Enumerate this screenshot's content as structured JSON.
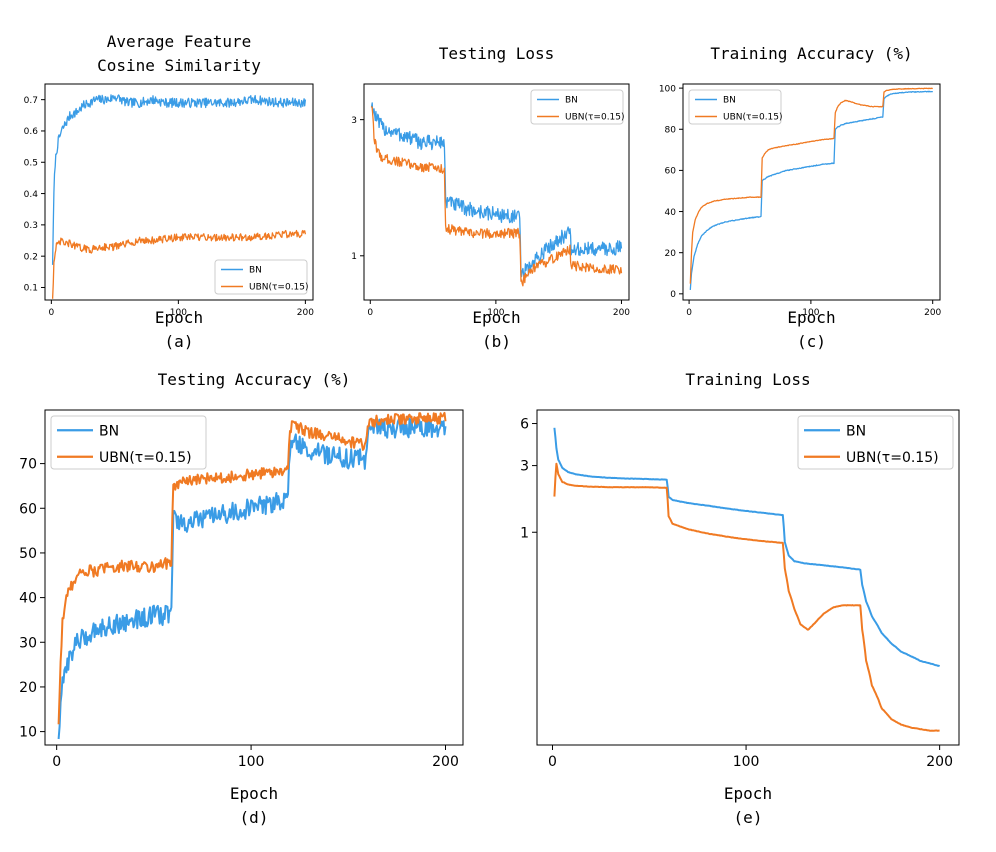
{
  "colors": {
    "bn": "#3a9ce6",
    "ubn": "#f07a23",
    "axis": "#000000",
    "background": "#ffffff"
  },
  "chart_data": [
    {
      "id": "a",
      "type": "line",
      "title": [
        "Average Feature",
        "Cosine Similarity"
      ],
      "xlabel": "Epoch",
      "caption": "(a)",
      "xlim": [
        -5,
        206
      ],
      "ylim": [
        0.06,
        0.75
      ],
      "xticks": [
        0,
        100,
        200
      ],
      "yticks": [
        0.1,
        0.2,
        0.3,
        0.4,
        0.5,
        0.6,
        0.7
      ],
      "legend": "bottom-right",
      "series": [
        {
          "name": "BN",
          "color_key": "bn",
          "x": [
            1,
            2,
            3,
            5,
            8,
            12,
            15,
            20,
            25,
            30,
            35,
            40,
            45,
            50,
            55,
            60,
            70,
            80,
            90,
            100,
            120,
            140,
            160,
            180,
            200
          ],
          "y": [
            0.18,
            0.4,
            0.5,
            0.56,
            0.6,
            0.63,
            0.65,
            0.66,
            0.68,
            0.69,
            0.7,
            0.7,
            0.7,
            0.71,
            0.7,
            0.69,
            0.69,
            0.7,
            0.69,
            0.69,
            0.69,
            0.69,
            0.7,
            0.69,
            0.69
          ],
          "noise": 0.015
        },
        {
          "name": "UBN(τ=0.15)",
          "color_key": "ubn",
          "x": [
            1,
            2,
            4,
            6,
            8,
            10,
            15,
            20,
            30,
            40,
            50,
            60,
            70,
            80,
            100,
            120,
            140,
            160,
            180,
            200
          ],
          "y": [
            0.07,
            0.18,
            0.23,
            0.24,
            0.25,
            0.24,
            0.24,
            0.23,
            0.22,
            0.23,
            0.23,
            0.24,
            0.25,
            0.25,
            0.26,
            0.26,
            0.26,
            0.26,
            0.27,
            0.27
          ],
          "noise": 0.012
        }
      ]
    },
    {
      "id": "b",
      "type": "line",
      "title": [
        "Testing Loss"
      ],
      "xlabel": "Epoch",
      "caption": "(b)",
      "xlim": [
        -5,
        206
      ],
      "ylim": [
        0.7,
        4.0
      ],
      "yscale": "log",
      "xticks": [
        0,
        100,
        200
      ],
      "yticks": [
        1,
        3
      ],
      "legend": "top-right",
      "series": [
        {
          "name": "BN",
          "color_key": "bn",
          "x": [
            1,
            5,
            10,
            20,
            30,
            40,
            50,
            59,
            60,
            70,
            80,
            90,
            100,
            110,
            119,
            120,
            125,
            130,
            140,
            150,
            158,
            159,
            160,
            170,
            180,
            190,
            200
          ],
          "y": [
            3.4,
            3.0,
            2.8,
            2.7,
            2.6,
            2.5,
            2.5,
            2.5,
            1.55,
            1.5,
            1.45,
            1.42,
            1.4,
            1.38,
            1.36,
            0.85,
            0.9,
            0.95,
            1.05,
            1.15,
            1.2,
            1.2,
            1.05,
            1.05,
            1.06,
            1.06,
            1.07
          ],
          "noise": 0.06
        },
        {
          "name": "UBN(τ=0.15)",
          "color_key": "ubn",
          "x": [
            1,
            3,
            6,
            10,
            20,
            30,
            40,
            50,
            59,
            60,
            70,
            80,
            90,
            100,
            110,
            119,
            120,
            125,
            130,
            140,
            150,
            158,
            159,
            160,
            170,
            180,
            190,
            200
          ],
          "y": [
            3.4,
            2.6,
            2.3,
            2.2,
            2.15,
            2.1,
            2.05,
            2.05,
            2.0,
            1.25,
            1.22,
            1.2,
            1.2,
            1.2,
            1.2,
            1.2,
            0.8,
            0.85,
            0.9,
            0.95,
            1.0,
            1.05,
            1.05,
            0.93,
            0.91,
            0.9,
            0.9,
            0.9
          ],
          "noise": 0.04
        }
      ]
    },
    {
      "id": "c",
      "type": "line",
      "title": [
        "Training Accuracy (%)"
      ],
      "xlabel": "Epoch",
      "caption": "(c)",
      "xlim": [
        -5,
        206
      ],
      "ylim": [
        -3,
        102
      ],
      "yticks": [
        0,
        20,
        40,
        60,
        80,
        100
      ],
      "ytick_labels": [
        "0",
        "20",
        "40",
        "60",
        "80",
        "100"
      ],
      "xticks": [
        0,
        100,
        200
      ],
      "legend": "top-left",
      "series": [
        {
          "name": "BN",
          "color_key": "bn",
          "x": [
            1,
            2,
            4,
            7,
            10,
            15,
            20,
            30,
            40,
            50,
            59,
            60,
            65,
            70,
            80,
            90,
            100,
            110,
            119,
            120,
            122,
            125,
            130,
            140,
            150,
            159,
            160,
            162,
            165,
            170,
            180,
            190,
            200
          ],
          "y": [
            2,
            10,
            18,
            24,
            28,
            31,
            33,
            35,
            36,
            37,
            37.5,
            55,
            57,
            58,
            60,
            61,
            62,
            63,
            63.5,
            80,
            81,
            82,
            83,
            84,
            85,
            86,
            95,
            96,
            97,
            97.5,
            98,
            98.2,
            98.3
          ],
          "noise": 0.2
        },
        {
          "name": "UBN(τ=0.15)",
          "color_key": "ubn",
          "x": [
            1,
            2,
            3,
            5,
            8,
            10,
            15,
            20,
            30,
            40,
            50,
            59,
            60,
            62,
            65,
            70,
            80,
            90,
            100,
            110,
            119,
            120,
            122,
            125,
            128,
            132,
            140,
            150,
            159,
            160,
            162,
            165,
            170,
            180,
            190,
            200
          ],
          "y": [
            5,
            20,
            30,
            36,
            40,
            42,
            44,
            45,
            46,
            46.5,
            47,
            47,
            66,
            68,
            70,
            71,
            72,
            73,
            74,
            75,
            75.5,
            88,
            91,
            93,
            94,
            93.5,
            92,
            91,
            91,
            98,
            98.8,
            99.2,
            99.5,
            99.7,
            99.8,
            99.9
          ],
          "noise": 0.15
        }
      ]
    },
    {
      "id": "d",
      "type": "line",
      "title": [
        "Testing Accuracy (%)"
      ],
      "xlabel": "Epoch",
      "caption": "(d)",
      "xlim": [
        -6,
        209
      ],
      "ylim": [
        7,
        82
      ],
      "yticks": [
        10,
        20,
        30,
        40,
        50,
        60,
        70
      ],
      "xticks": [
        0,
        100,
        200
      ],
      "legend": "top-left",
      "series": [
        {
          "name": "BN",
          "color_key": "bn",
          "x": [
            1,
            2,
            3,
            5,
            8,
            10,
            15,
            20,
            30,
            40,
            50,
            55,
            59,
            60,
            65,
            70,
            80,
            90,
            100,
            110,
            119,
            120,
            122,
            125,
            130,
            140,
            150,
            159,
            160,
            165,
            170,
            180,
            190,
            200
          ],
          "y": [
            9,
            15,
            20,
            25,
            28,
            30,
            31,
            33,
            34,
            35,
            36,
            36,
            37,
            58,
            56,
            57,
            58,
            59,
            60,
            61,
            62,
            74,
            75,
            74,
            73,
            72,
            71,
            71,
            78,
            78,
            78,
            78,
            78,
            78
          ],
          "noise": 2.2
        },
        {
          "name": "UBN(τ=0.15)",
          "color_key": "ubn",
          "x": [
            1,
            2,
            3,
            5,
            8,
            10,
            15,
            20,
            30,
            40,
            50,
            59,
            60,
            65,
            70,
            80,
            90,
            100,
            110,
            119,
            120,
            122,
            125,
            130,
            140,
            150,
            159,
            160,
            165,
            170,
            180,
            190,
            200
          ],
          "y": [
            12,
            25,
            35,
            40,
            43,
            45,
            46,
            46,
            47,
            47,
            47,
            48,
            65,
            66,
            66,
            67,
            67,
            67.5,
            68,
            68.5,
            78,
            79,
            78,
            77,
            76,
            75,
            74,
            79,
            79.5,
            79.8,
            80,
            80,
            80.2
          ],
          "noise": 1.3
        }
      ]
    },
    {
      "id": "e",
      "type": "line",
      "title": [
        "Training Loss"
      ],
      "xlabel": "Epoch",
      "caption": "(e)",
      "xlim": [
        -8,
        210
      ],
      "ylim": [
        0.03,
        7.5
      ],
      "yscale": "log",
      "yticks": [
        1,
        3,
        6
      ],
      "xticks": [
        0,
        100,
        200
      ],
      "legend": "top-right",
      "series": [
        {
          "name": "BN",
          "color_key": "bn",
          "x": [
            1,
            2,
            3,
            5,
            8,
            12,
            20,
            30,
            40,
            50,
            59,
            60,
            62,
            70,
            80,
            90,
            100,
            110,
            118,
            119,
            120,
            122,
            125,
            130,
            140,
            150,
            159,
            160,
            162,
            165,
            170,
            175,
            180,
            185,
            190,
            195,
            200
          ],
          "y": [
            5.6,
            4.0,
            3.3,
            2.9,
            2.7,
            2.6,
            2.5,
            2.45,
            2.42,
            2.4,
            2.38,
            1.8,
            1.7,
            1.62,
            1.55,
            1.48,
            1.42,
            1.37,
            1.33,
            1.33,
            0.85,
            0.68,
            0.62,
            0.6,
            0.58,
            0.56,
            0.54,
            0.42,
            0.32,
            0.25,
            0.19,
            0.16,
            0.14,
            0.13,
            0.12,
            0.115,
            0.11
          ],
          "noise": 0.003
        },
        {
          "name": "UBN(τ=0.15)",
          "color_key": "ubn",
          "x": [
            1,
            2,
            3,
            5,
            8,
            12,
            20,
            30,
            40,
            50,
            59,
            60,
            62,
            70,
            80,
            90,
            100,
            110,
            119,
            120,
            122,
            125,
            128,
            132,
            135,
            140,
            145,
            150,
            155,
            159,
            160,
            162,
            165,
            170,
            175,
            180,
            185,
            190,
            195,
            200
          ],
          "y": [
            1.8,
            3.1,
            2.6,
            2.3,
            2.2,
            2.15,
            2.12,
            2.1,
            2.1,
            2.1,
            2.08,
            1.3,
            1.15,
            1.05,
            0.98,
            0.93,
            0.89,
            0.86,
            0.84,
            0.55,
            0.38,
            0.28,
            0.22,
            0.2,
            0.22,
            0.26,
            0.29,
            0.3,
            0.3,
            0.3,
            0.2,
            0.12,
            0.08,
            0.055,
            0.046,
            0.042,
            0.04,
            0.039,
            0.038,
            0.038
          ],
          "noise": 0.003
        }
      ]
    }
  ]
}
